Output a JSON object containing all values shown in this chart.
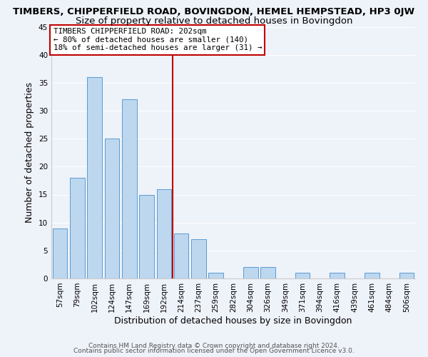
{
  "title": "TIMBERS, CHIPPERFIELD ROAD, BOVINGDON, HEMEL HEMPSTEAD, HP3 0JW",
  "subtitle": "Size of property relative to detached houses in Bovingdon",
  "xlabel": "Distribution of detached houses by size in Bovingdon",
  "ylabel": "Number of detached properties",
  "bar_labels": [
    "57sqm",
    "79sqm",
    "102sqm",
    "124sqm",
    "147sqm",
    "169sqm",
    "192sqm",
    "214sqm",
    "237sqm",
    "259sqm",
    "282sqm",
    "304sqm",
    "326sqm",
    "349sqm",
    "371sqm",
    "394sqm",
    "416sqm",
    "439sqm",
    "461sqm",
    "484sqm",
    "506sqm"
  ],
  "bar_heights": [
    9,
    18,
    36,
    25,
    32,
    15,
    16,
    8,
    7,
    1,
    0,
    2,
    2,
    0,
    1,
    0,
    1,
    0,
    1,
    0,
    1
  ],
  "bar_color": "#bdd7ee",
  "bar_edge_color": "#5b9bd5",
  "vline_x": 6.5,
  "vline_color": "#c00000",
  "annotation_line1": "TIMBERS CHIPPERFIELD ROAD: 202sqm",
  "annotation_line2": "← 80% of detached houses are smaller (140)",
  "annotation_line3": "18% of semi-detached houses are larger (31) →",
  "annotation_box_color": "#ffffff",
  "annotation_box_edge": "#c00000",
  "ylim": [
    0,
    45
  ],
  "yticks": [
    0,
    5,
    10,
    15,
    20,
    25,
    30,
    35,
    40,
    45
  ],
  "footer_line1": "Contains HM Land Registry data © Crown copyright and database right 2024.",
  "footer_line2": "Contains public sector information licensed under the Open Government Licence v3.0.",
  "background_color": "#eef2f9",
  "plot_background": "#eef2f9",
  "grid_color": "#ffffff",
  "title_fontsize": 9.5,
  "subtitle_fontsize": 9.5,
  "axis_label_fontsize": 9,
  "tick_fontsize": 7.5,
  "footer_fontsize": 6.5
}
